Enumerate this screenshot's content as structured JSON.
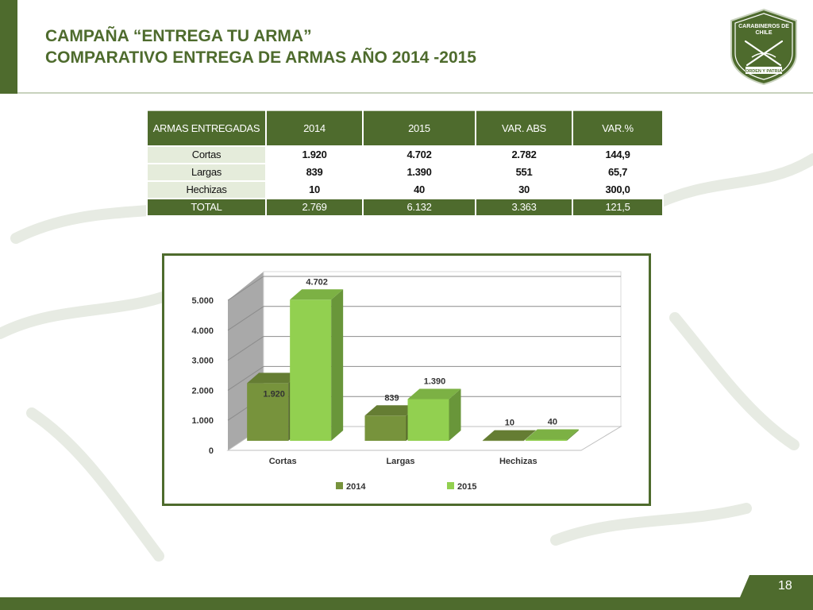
{
  "header": {
    "title_line1": "CAMPAÑA “ENTREGA TU ARMA”",
    "title_line2": "COMPARATIVO ENTREGA DE ARMAS AÑO 2014 -2015",
    "logo_text_top": "CARABINEROS DE CHILE",
    "logo_text_bottom": "ORDEN Y PATRIA"
  },
  "table": {
    "headers": [
      "ARMAS ENTREGADAS",
      "2014",
      "2015",
      "VAR. ABS",
      "VAR.%"
    ],
    "rows": [
      [
        "Cortas",
        "1.920",
        "4.702",
        "2.782",
        "144,9"
      ],
      [
        "Largas",
        "839",
        "1.390",
        "551",
        "65,7"
      ],
      [
        "Hechizas",
        "10",
        "40",
        "30",
        "300,0"
      ]
    ],
    "total": [
      "TOTAL",
      "2.769",
      "6.132",
      "3.363",
      "121,5"
    ]
  },
  "chart_data": {
    "type": "bar",
    "categories": [
      "Cortas",
      "Largas",
      "Hechizas"
    ],
    "series": [
      {
        "name": "2014",
        "values": [
          1920,
          839,
          10
        ],
        "labels": [
          "1.920",
          "839",
          "10"
        ],
        "color": "#77933c"
      },
      {
        "name": "2015",
        "values": [
          4702,
          1390,
          40
        ],
        "labels": [
          "4.702",
          "1.390",
          "40"
        ],
        "color": "#92d050"
      }
    ],
    "ylim": [
      0,
      5000
    ],
    "yticks": [
      0,
      1000,
      2000,
      3000,
      4000,
      5000
    ],
    "ytick_labels": [
      "0",
      "1.000",
      "2.000",
      "3.000",
      "4.000",
      "5.000"
    ],
    "grid": true,
    "legend_position": "bottom",
    "style": "3d-column"
  },
  "footer": {
    "page_number": "18"
  },
  "colors": {
    "brand_green": "#4e6b2d",
    "table_label_bg": "#e5ecdb"
  }
}
